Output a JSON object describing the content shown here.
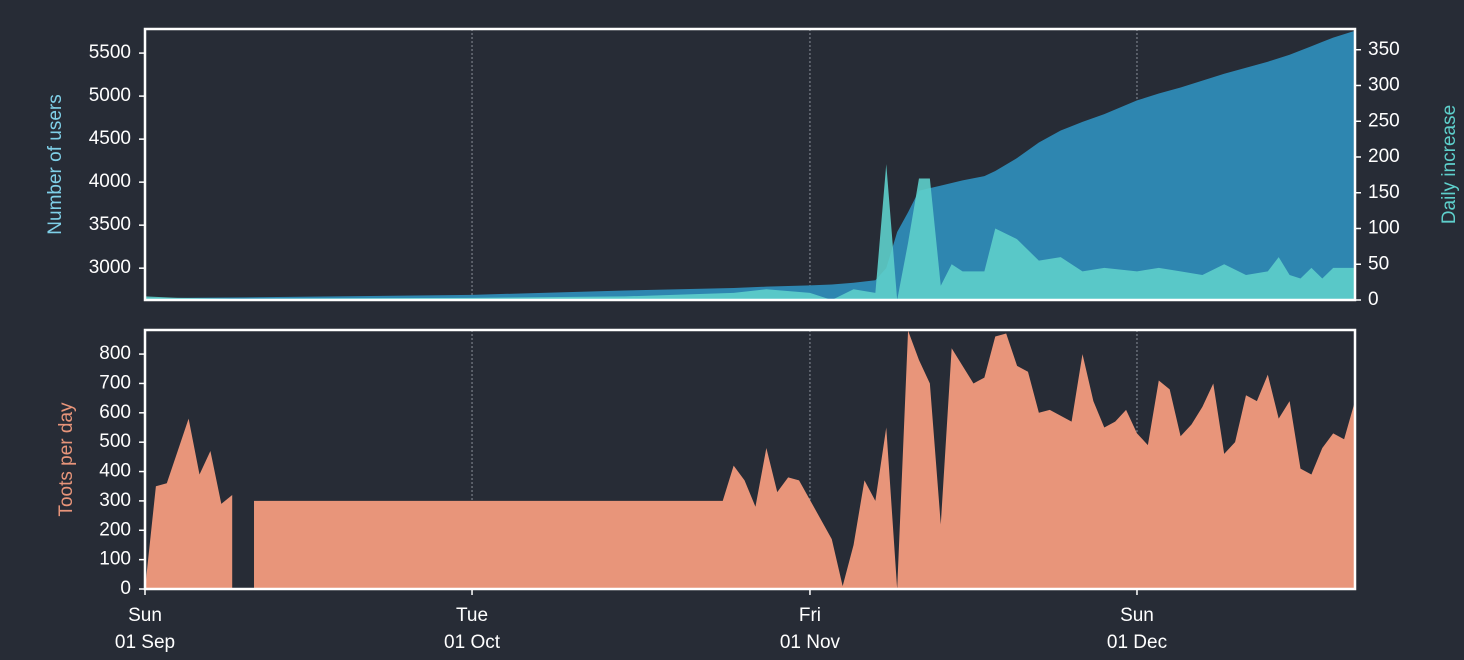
{
  "chart_data": [
    {
      "type": "area",
      "ylabel": "Number of users",
      "ylabel_color": "#7fd0e8",
      "y2label": "Daily increase",
      "y2label_color": "#5ecfcb",
      "x": [
        "01 Sep",
        "04 Sep",
        "10 Sep",
        "01 Oct",
        "15 Oct",
        "25 Oct",
        "28 Oct",
        "01 Nov",
        "03 Nov",
        "05 Nov",
        "07 Nov",
        "08 Nov",
        "09 Nov",
        "10 Nov",
        "11 Nov",
        "12 Nov",
        "13 Nov",
        "14 Nov",
        "15 Nov",
        "17 Nov",
        "18 Nov",
        "20 Nov",
        "22 Nov",
        "24 Nov",
        "26 Nov",
        "28 Nov",
        "01 Dec",
        "03 Dec",
        "05 Dec",
        "07 Dec",
        "09 Dec",
        "11 Dec",
        "13 Dec",
        "14 Dec",
        "15 Dec",
        "16 Dec",
        "17 Dec",
        "18 Dec",
        "19 Dec",
        "21 Dec"
      ],
      "xlim": [
        "01 Sep",
        "21 Dec"
      ],
      "series": [
        {
          "color": "#2e86b0",
          "axis": "y",
          "values": [
            2650,
            2655,
            2660,
            2690,
            2740,
            2770,
            2785,
            2800,
            2810,
            2830,
            2860,
            3000,
            3420,
            3650,
            3900,
            3930,
            3960,
            3990,
            4020,
            4070,
            4130,
            4280,
            4460,
            4600,
            4700,
            4790,
            4950,
            5030,
            5100,
            5180,
            5260,
            5330,
            5400,
            5440,
            5480,
            5530,
            5580,
            5630,
            5680,
            5760
          ]
        },
        {
          "color": "#5ecfcb",
          "axis": "y2",
          "values": [
            5,
            3,
            2,
            3,
            5,
            10,
            15,
            10,
            0,
            15,
            10,
            190,
            0,
            80,
            170,
            170,
            20,
            50,
            40,
            40,
            100,
            85,
            55,
            60,
            40,
            45,
            40,
            45,
            40,
            35,
            50,
            35,
            40,
            60,
            35,
            30,
            45,
            30,
            45,
            45
          ]
        }
      ],
      "ylim": [
        2630,
        5780
      ],
      "yticks": [
        3000,
        3500,
        4000,
        4500,
        5000,
        5500
      ],
      "y2lim": [
        0,
        379
      ],
      "y2ticks": [
        0,
        50,
        100,
        150,
        200,
        250,
        300,
        350
      ],
      "grid": true
    },
    {
      "type": "area",
      "ylabel": "Toots per day",
      "color": "#e8957a",
      "x": [
        "01 Sep",
        "02 Sep",
        "03 Sep",
        "04 Sep",
        "05 Sep",
        "06 Sep",
        "07 Sep",
        "08 Sep",
        "09 Sep",
        "10 Sep",
        "11 Sep",
        "24 Oct",
        "25 Oct",
        "26 Oct",
        "27 Oct",
        "28 Oct",
        "29 Oct",
        "30 Oct",
        "31 Oct",
        "03 Nov",
        "04 Nov",
        "05 Nov",
        "06 Nov",
        "07 Nov",
        "08 Nov",
        "09 Nov",
        "10 Nov",
        "11 Nov",
        "12 Nov",
        "13 Nov",
        "14 Nov",
        "15 Nov",
        "16 Nov",
        "17 Nov",
        "18 Nov",
        "19 Nov",
        "20 Nov",
        "21 Nov",
        "22 Nov",
        "23 Nov",
        "24 Nov",
        "25 Nov",
        "26 Nov",
        "27 Nov",
        "28 Nov",
        "29 Nov",
        "30 Nov",
        "01 Dec",
        "02 Dec",
        "03 Dec",
        "04 Dec",
        "05 Dec",
        "06 Dec",
        "07 Dec",
        "08 Dec",
        "09 Dec",
        "10 Dec",
        "11 Dec",
        "12 Dec",
        "13 Dec",
        "14 Dec",
        "15 Dec",
        "16 Dec",
        "17 Dec",
        "18 Dec",
        "19 Dec",
        "20 Dec",
        "21 Dec"
      ],
      "values": [
        0,
        350,
        360,
        470,
        580,
        390,
        470,
        290,
        320,
        null,
        300,
        300,
        420,
        370,
        280,
        480,
        330,
        380,
        370,
        170,
        10,
        150,
        370,
        300,
        550,
        0,
        880,
        780,
        700,
        220,
        820,
        760,
        700,
        720,
        860,
        870,
        760,
        740,
        600,
        610,
        590,
        570,
        800,
        640,
        550,
        570,
        610,
        530,
        490,
        710,
        680,
        520,
        560,
        620,
        700,
        460,
        500,
        660,
        640,
        730,
        580,
        640,
        410,
        390,
        480,
        530,
        510,
        640
      ],
      "xlim": [
        "01 Sep",
        "21 Dec"
      ],
      "xticks": [
        {
          "value": "01 Sep",
          "label": "Sun"
        },
        {
          "value": "01 Oct",
          "label": "Tue"
        },
        {
          "value": "01 Nov",
          "label": "Fri"
        },
        {
          "value": "01 Dec",
          "label": "Sun"
        }
      ],
      "ylim": [
        0,
        882
      ],
      "yticks": [
        0,
        100,
        200,
        300,
        400,
        500,
        600,
        700,
        800
      ],
      "grid": true
    }
  ]
}
